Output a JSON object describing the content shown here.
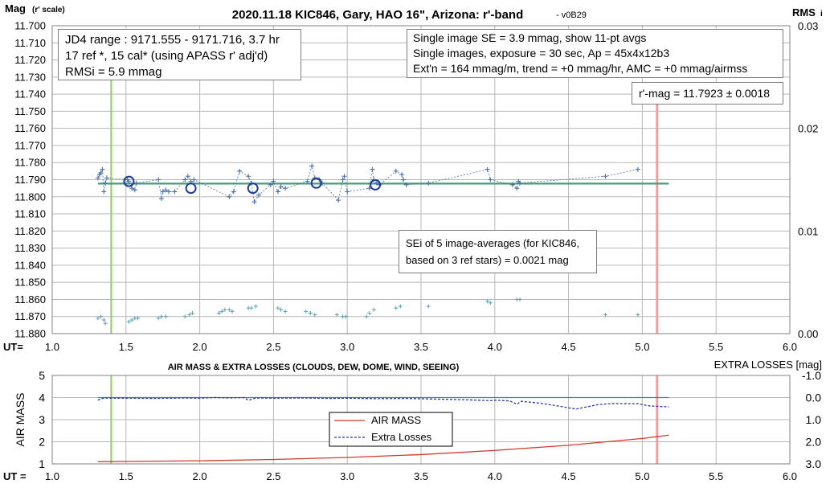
{
  "top_chart": {
    "title": "2020.11.18 KIC846, Gary, HAO 16\", Arizona: r'-band",
    "version": "- v0B29",
    "y_label_main": "Mag",
    "y_label_sub": "(r' scale)",
    "right_label_main": "RMS",
    "right_label_sub": "i",
    "x_label": "UT=",
    "info_box_left": {
      "line1": "JD4 range : 9171.555 - 9171.716,  3.7  hr",
      "line2": "17 ref *, 15 cal* (using APASS r' adj'd)",
      "line3": "RMSi = 5.9 mmag"
    },
    "info_box_right": {
      "line1": "Single image SE = 3.9 mmag, show  11-pt avgs",
      "line2": "Single images, exposure = 30 sec, Ap = 45x4x12b3",
      "line3": "Ext'n = 164 mmag/m, trend =  +0 mmag/hr, AMC = +0 mmag/airmss"
    },
    "mag_box": "r'-mag = 11.7923 ± 0.0018",
    "sei_box": {
      "line1": "SEi of 5 image-averages (for KIC846,",
      "line2": "based on 3 ref stars) = 0.0021 mag"
    }
  },
  "bottom_chart": {
    "title": "AIR MASS & EXTRA LOSSES (CLOUDS, DEW, DOME, WIND, SEEING)",
    "right_title": "EXTRA LOSSES [mag]",
    "y_label": "AIR MASS",
    "x_label": "UT =",
    "legend": {
      "air_mass": "AIR MASS",
      "extra_losses": "Extra Losses"
    }
  },
  "colors": {
    "target_points": "#4a6fa8",
    "check_points": "#5aa0b4",
    "averages": "#1f3c99",
    "fit_line": "#4a9a78",
    "start_marker": "#8ccf5a",
    "end_marker": "#f0a0a0",
    "air_mass": "#d03a2a",
    "extra_losses": "#2a3aa8",
    "extra_ref": "#3d8a78",
    "grid": "#b8b8b8"
  },
  "chart_data": [
    {
      "type": "scatter",
      "title": "2020.11.18 KIC846, Gary, HAO 16\", Arizona: r'-band",
      "xlabel": "UT=",
      "ylabel": "Mag (r' scale)",
      "xlim": [
        1.0,
        6.0
      ],
      "ylim": [
        11.88,
        11.7
      ],
      "y2lim": [
        0.0,
        0.03
      ],
      "y2label": "RMSi",
      "x_ticks": [
        "1.0",
        "1.5",
        "2.0",
        "2.5",
        "3.0",
        "3.5",
        "4.0",
        "4.5",
        "5.0",
        "5.5",
        "6.0"
      ],
      "y_ticks": [
        "11.700",
        "11.710",
        "11.720",
        "11.730",
        "11.740",
        "11.750",
        "11.760",
        "11.770",
        "11.780",
        "11.790",
        "11.800",
        "11.810",
        "11.820",
        "11.830",
        "11.840",
        "11.850",
        "11.860",
        "11.870",
        "11.880"
      ],
      "y2_ticks": [
        "0.03",
        "0.02",
        "0.01",
        "0.00"
      ],
      "start_ut": 1.4,
      "end_ut": 5.1,
      "fit_level": 11.7923,
      "fit_range": [
        1.31,
        5.18
      ],
      "grid": true,
      "series": [
        {
          "name": "KIC846",
          "x": [
            1.31,
            1.32,
            1.33,
            1.34,
            1.35,
            1.36,
            1.37,
            1.51,
            1.52,
            1.54,
            1.56,
            1.57,
            1.72,
            1.74,
            1.75,
            1.77,
            1.79,
            1.83,
            1.9,
            1.92,
            1.94,
            1.96,
            2.2,
            2.23,
            2.27,
            2.33,
            2.35,
            2.37,
            2.4,
            2.48,
            2.5,
            2.53,
            2.55,
            2.58,
            2.73,
            2.76,
            2.78,
            2.81,
            2.83,
            2.94,
            2.97,
            2.98,
            3.0,
            3.15,
            3.17,
            3.18,
            3.2,
            3.22,
            3.33,
            3.37,
            3.38,
            3.4,
            3.55,
            3.95,
            3.97,
            4.12,
            4.15,
            4.16,
            4.17,
            4.75,
            4.97
          ],
          "y": [
            11.789,
            11.787,
            11.786,
            11.784,
            11.797,
            11.792,
            11.789,
            11.79,
            11.791,
            11.795,
            11.796,
            11.792,
            11.79,
            11.801,
            11.797,
            11.796,
            11.797,
            11.797,
            11.79,
            11.788,
            11.791,
            11.79,
            11.8,
            11.797,
            11.785,
            11.788,
            11.792,
            11.803,
            11.799,
            11.793,
            11.791,
            11.797,
            11.794,
            11.795,
            11.791,
            11.782,
            11.789,
            11.79,
            11.792,
            11.802,
            11.79,
            11.788,
            11.797,
            11.795,
            11.784,
            11.79,
            11.792,
            11.793,
            11.785,
            11.787,
            11.79,
            11.793,
            11.792,
            11.784,
            11.79,
            11.793,
            11.795,
            11.791,
            11.792,
            11.788,
            11.784
          ]
        },
        {
          "name": "11-pt avgs",
          "x": [
            1.52,
            1.94,
            2.36,
            2.79,
            3.19
          ],
          "y": [
            11.791,
            11.795,
            11.795,
            11.792,
            11.793
          ]
        },
        {
          "name": "check",
          "x": [
            1.31,
            1.33,
            1.35,
            1.36,
            1.52,
            1.54,
            1.56,
            1.58,
            1.72,
            1.74,
            1.77,
            1.9,
            1.93,
            1.95,
            2.13,
            2.15,
            2.17,
            2.2,
            2.22,
            2.33,
            2.35,
            2.38,
            2.53,
            2.55,
            2.58,
            2.72,
            2.75,
            2.78,
            2.93,
            2.97,
            2.99,
            3.13,
            3.15,
            3.18,
            3.33,
            3.36,
            3.55,
            3.95,
            3.97,
            4.15,
            4.17,
            4.75,
            4.97
          ],
          "y": [
            11.871,
            11.87,
            11.872,
            11.874,
            11.873,
            11.872,
            11.871,
            11.871,
            11.871,
            11.87,
            11.87,
            11.87,
            11.869,
            11.868,
            11.868,
            11.867,
            11.866,
            11.866,
            11.867,
            11.865,
            11.865,
            11.864,
            11.865,
            11.866,
            11.867,
            11.867,
            11.868,
            11.869,
            11.869,
            11.87,
            11.87,
            11.87,
            11.868,
            11.866,
            11.865,
            11.864,
            11.864,
            11.861,
            11.862,
            11.86,
            11.86,
            11.869,
            11.869
          ]
        }
      ]
    },
    {
      "type": "line",
      "title": "AIR MASS & EXTRA LOSSES (CLOUDS, DEW, DOME, WIND, SEEING)",
      "xlabel": "UT =",
      "ylabel": "AIR MASS",
      "y2label": "EXTRA LOSSES [mag]",
      "xlim": [
        1.0,
        6.0
      ],
      "ylim": [
        1,
        5
      ],
      "y2lim": [
        3.0,
        -1.0
      ],
      "x_ticks": [
        "1.0",
        "1.5",
        "2.0",
        "2.5",
        "3.0",
        "3.5",
        "4.0",
        "4.5",
        "5.0",
        "5.5",
        "6.0"
      ],
      "y_ticks": [
        "1",
        "2",
        "3",
        "4",
        "5"
      ],
      "y2_ticks": [
        "-1.0",
        "0.0",
        "1.0",
        "2.0",
        "3.0"
      ],
      "legend_position": "center",
      "series": [
        {
          "name": "AIR MASS",
          "x": [
            1.31,
            1.5,
            2.0,
            2.5,
            3.0,
            3.5,
            4.0,
            4.5,
            5.0,
            5.18
          ],
          "y": [
            1.1,
            1.11,
            1.14,
            1.2,
            1.29,
            1.42,
            1.61,
            1.84,
            2.15,
            2.3
          ]
        },
        {
          "name": "Extra Losses",
          "x": [
            1.31,
            1.33,
            1.36,
            1.4,
            1.5,
            1.7,
            1.9,
            2.0,
            2.1,
            2.2,
            2.3,
            2.33,
            2.38,
            2.5,
            2.7,
            2.9,
            3.0,
            3.2,
            3.4,
            3.6,
            3.8,
            3.97,
            4.0,
            4.1,
            4.15,
            4.18,
            4.3,
            4.4,
            4.55,
            4.7,
            4.8,
            4.97,
            5.05,
            5.18
          ],
          "y": [
            0.12,
            0.05,
            0.02,
            0.03,
            0.03,
            0.04,
            0.02,
            0.03,
            0.0,
            0.02,
            0.0,
            0.12,
            0.02,
            0.03,
            0.02,
            0.04,
            0.03,
            0.05,
            0.04,
            0.07,
            0.1,
            0.14,
            0.12,
            0.15,
            0.3,
            0.17,
            0.25,
            0.35,
            0.52,
            0.32,
            0.27,
            0.28,
            0.38,
            0.42
          ]
        },
        {
          "name": "",
          "x": [
            1.31,
            5.18
          ],
          "y": [
            0.0,
            0.0
          ]
        }
      ],
      "start_ut": 1.4,
      "end_ut": 5.1
    }
  ]
}
